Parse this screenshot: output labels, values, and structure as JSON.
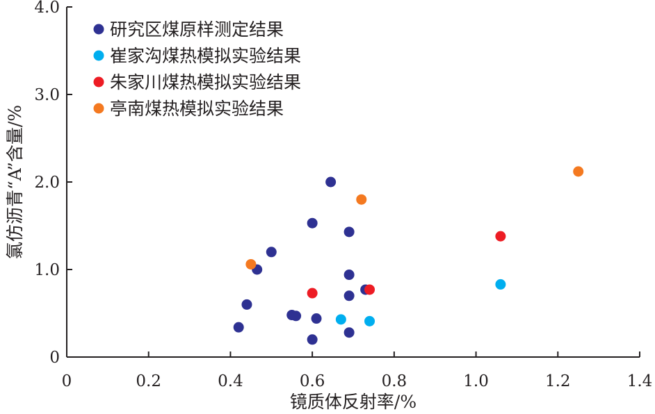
{
  "chart_data": {
    "type": "scatter",
    "title": "",
    "xlabel": "镜质体反射率/%",
    "ylabel": "氯仿沥青“A”含量/%",
    "xlim": [
      0,
      1.4
    ],
    "ylim": [
      0,
      4.0
    ],
    "x_ticks": [
      "0",
      "0.2",
      "0.4",
      "0.6",
      "0.8",
      "1.0",
      "1.2",
      "1.4"
    ],
    "y_ticks": [
      "0",
      "1.0",
      "2.0",
      "3.0",
      "4.0"
    ],
    "x_tick_values": [
      0,
      0.2,
      0.4,
      0.6,
      0.8,
      1.0,
      1.2,
      1.4
    ],
    "y_tick_values": [
      0,
      1.0,
      2.0,
      3.0,
      4.0
    ],
    "grid": false,
    "legend_position": "top-left",
    "series": [
      {
        "name": "研究区煤原样测定结果",
        "color": "#2e3192",
        "points": [
          {
            "x": 0.42,
            "y": 0.34
          },
          {
            "x": 0.44,
            "y": 0.6
          },
          {
            "x": 0.465,
            "y": 1.0
          },
          {
            "x": 0.5,
            "y": 1.2
          },
          {
            "x": 0.55,
            "y": 0.48
          },
          {
            "x": 0.56,
            "y": 0.47
          },
          {
            "x": 0.6,
            "y": 1.53
          },
          {
            "x": 0.6,
            "y": 0.2
          },
          {
            "x": 0.61,
            "y": 0.44
          },
          {
            "x": 0.645,
            "y": 2.0
          },
          {
            "x": 0.69,
            "y": 1.43
          },
          {
            "x": 0.69,
            "y": 0.94
          },
          {
            "x": 0.69,
            "y": 0.7
          },
          {
            "x": 0.69,
            "y": 0.28
          },
          {
            "x": 0.73,
            "y": 0.77
          }
        ]
      },
      {
        "name": "崔家沟煤热模拟实验结果",
        "color": "#00aeef",
        "points": [
          {
            "x": 0.67,
            "y": 0.43
          },
          {
            "x": 0.74,
            "y": 0.41
          },
          {
            "x": 1.06,
            "y": 0.83
          }
        ]
      },
      {
        "name": "朱家川煤热模拟实验结果",
        "color": "#ed1c24",
        "points": [
          {
            "x": 0.6,
            "y": 0.73
          },
          {
            "x": 0.74,
            "y": 0.77
          },
          {
            "x": 1.06,
            "y": 1.38
          }
        ]
      },
      {
        "name": "亭南煤热模拟实验结果",
        "color": "#f47920",
        "points": [
          {
            "x": 0.45,
            "y": 1.06
          },
          {
            "x": 0.72,
            "y": 1.8
          },
          {
            "x": 1.25,
            "y": 2.12
          }
        ]
      }
    ]
  }
}
